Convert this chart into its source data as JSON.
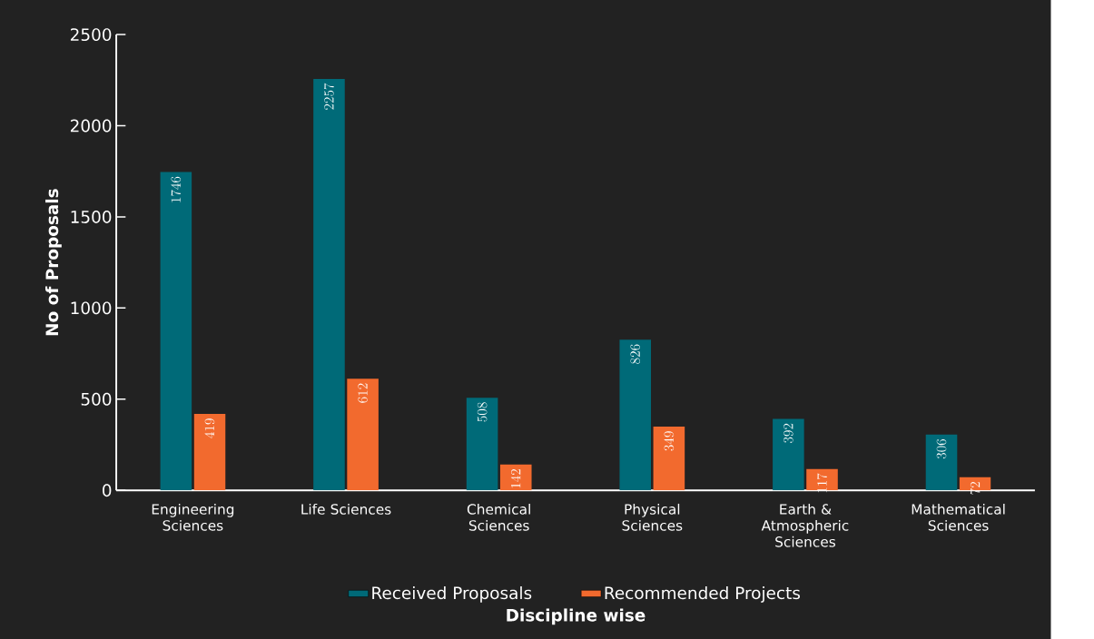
{
  "chart_data": {
    "type": "bar",
    "xlabel": "Discipline wise",
    "ylabel": "No of Proposals",
    "categories": [
      "Engineering Sciences",
      "Life Sciences",
      "Chemical Sciences",
      "Physical Sciences",
      "Earth & Atmospheric Sciences",
      "Mathematical Sciences"
    ],
    "series": [
      {
        "name": "Received Proposals",
        "color": "#006a78",
        "values": [
          1746,
          2257,
          508,
          826,
          392,
          306
        ]
      },
      {
        "name": "Recommended Projects",
        "color": "#f26a2e",
        "values": [
          419,
          612,
          142,
          349,
          117,
          72
        ]
      }
    ],
    "ylim": [
      0,
      2500
    ],
    "yticks": [
      0,
      500,
      1000,
      1500,
      2000,
      2500
    ],
    "data_labels": true,
    "legend": "bottom",
    "grid": false
  }
}
